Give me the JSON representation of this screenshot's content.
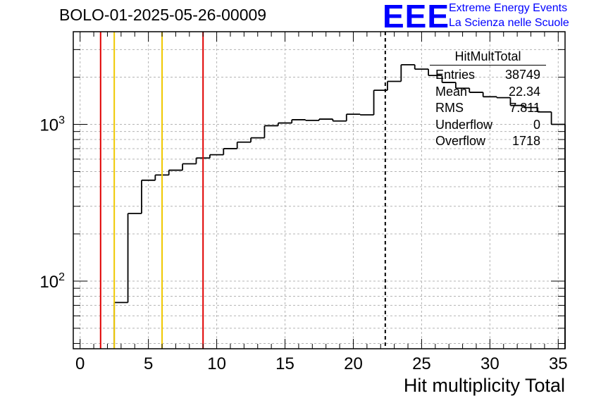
{
  "header": {
    "title": "BOLO-01-2025-05-26-00009",
    "logo_mark": "EEE",
    "logo_line1": "Extreme Energy Events",
    "logo_line2": "La Scienza nelle Scuole"
  },
  "stats": {
    "title": "HitMultTotal",
    "rows": [
      {
        "label": "Entries",
        "value": "38749"
      },
      {
        "label": "Mean",
        "value": "22.34"
      },
      {
        "label": "RMS",
        "value": "7.811"
      },
      {
        "label": "Underflow",
        "value": "0"
      },
      {
        "label": "Overflow",
        "value": "1718"
      }
    ]
  },
  "chart_data": {
    "type": "histogram",
    "title": "BOLO-01-2025-05-26-00009",
    "xlabel": "Hit multiplicity Total",
    "ylabel": "",
    "xlim": [
      -0.5,
      35.5
    ],
    "ylim": [
      37,
      3900
    ],
    "yscale": "log",
    "grid": true,
    "x_ticks": [
      0,
      5,
      10,
      15,
      20,
      25,
      30,
      35
    ],
    "y_tick_labels": [
      "10^2",
      "10^3"
    ],
    "bin_edges": [
      -0.5,
      0.5,
      1.5,
      2.5,
      3.5,
      4.5,
      5.5,
      6.5,
      7.5,
      8.5,
      9.5,
      10.5,
      11.5,
      12.5,
      13.5,
      14.5,
      15.5,
      16.5,
      17.5,
      18.5,
      19.5,
      20.5,
      21.5,
      22.5,
      23.5,
      24.5,
      25.5,
      26.5,
      27.5,
      28.5,
      29.5,
      30.5,
      31.5,
      32.5,
      33.5,
      34.5,
      35.5
    ],
    "counts": [
      0,
      0,
      0,
      73,
      270,
      440,
      475,
      510,
      560,
      610,
      640,
      700,
      770,
      820,
      980,
      1020,
      1070,
      1060,
      1080,
      1050,
      1160,
      1150,
      1650,
      1880,
      2400,
      2250,
      2050,
      1850,
      1700,
      1600,
      1500,
      1480,
      1320,
      1280,
      1200,
      1000
    ],
    "vertical_lines": [
      {
        "x": 1.5,
        "color": "#e00000",
        "style": "solid"
      },
      {
        "x": 2.5,
        "color": "#f0c800",
        "style": "solid"
      },
      {
        "x": 6.0,
        "color": "#f0c800",
        "style": "solid"
      },
      {
        "x": 9.0,
        "color": "#e00000",
        "style": "solid"
      },
      {
        "x": 22.34,
        "color": "#000000",
        "style": "dashed"
      }
    ]
  }
}
